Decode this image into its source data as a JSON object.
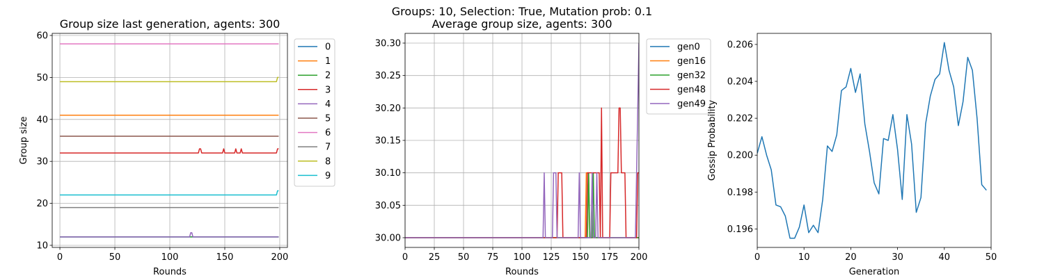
{
  "suptitle_line1": "Groups: 10, Selection: True, Mutation prob: 0.1",
  "chart_data": [
    {
      "type": "line",
      "title": "Group size last generation, agents: 300",
      "xlabel": "Rounds",
      "ylabel": "Group size",
      "xlim": [
        -7,
        207
      ],
      "ylim": [
        9.5,
        60.5
      ],
      "xticks": [
        0,
        50,
        100,
        150,
        200
      ],
      "yticks": [
        10,
        20,
        30,
        40,
        50,
        60
      ],
      "grid": true,
      "legend": "outside-right",
      "series": [
        {
          "name": "0",
          "color": "#1f77b4",
          "points": [
            [
              0,
              12
            ],
            [
              199,
              12
            ]
          ]
        },
        {
          "name": "1",
          "color": "#ff7f0e",
          "points": [
            [
              0,
              41
            ],
            [
              199,
              41
            ]
          ]
        },
        {
          "name": "2",
          "color": "#2ca02c",
          "points": [
            [
              0,
              12
            ],
            [
              199,
              12
            ]
          ]
        },
        {
          "name": "3",
          "color": "#d62728",
          "points": [
            [
              0,
              32
            ],
            [
              126,
              32
            ],
            [
              127,
              33
            ],
            [
              128,
              33
            ],
            [
              129,
              32
            ],
            [
              148,
              32
            ],
            [
              149,
              33
            ],
            [
              150,
              32
            ],
            [
              159,
              32
            ],
            [
              160,
              33
            ],
            [
              161,
              32
            ],
            [
              164,
              32
            ],
            [
              165,
              33
            ],
            [
              166,
              32
            ],
            [
              197,
              32
            ],
            [
              198,
              33
            ],
            [
              199,
              33
            ]
          ]
        },
        {
          "name": "4",
          "color": "#9467bd",
          "points": [
            [
              0,
              12
            ],
            [
              118,
              12
            ],
            [
              119,
              13
            ],
            [
              120,
              13
            ],
            [
              121,
              12
            ],
            [
              199,
              12
            ]
          ]
        },
        {
          "name": "5",
          "color": "#8c564b",
          "points": [
            [
              0,
              36
            ],
            [
              199,
              36
            ]
          ]
        },
        {
          "name": "6",
          "color": "#e377c2",
          "points": [
            [
              0,
              58
            ],
            [
              199,
              58
            ]
          ]
        },
        {
          "name": "7",
          "color": "#7f7f7f",
          "points": [
            [
              0,
              19
            ],
            [
              199,
              19
            ]
          ]
        },
        {
          "name": "8",
          "color": "#bcbd22",
          "points": [
            [
              0,
              49
            ],
            [
              197,
              49
            ],
            [
              198,
              50
            ],
            [
              199,
              50
            ]
          ]
        },
        {
          "name": "9",
          "color": "#17becf",
          "points": [
            [
              0,
              22
            ],
            [
              197,
              22
            ],
            [
              198,
              23
            ],
            [
              199,
              23
            ]
          ]
        }
      ]
    },
    {
      "type": "line",
      "title": "Average group size, agents: 300",
      "xlabel": "Rounds",
      "ylabel": "",
      "xlim": [
        0,
        200
      ],
      "ylim": [
        29.985,
        30.315
      ],
      "xticks": [
        0,
        25,
        50,
        75,
        100,
        125,
        150,
        175,
        200
      ],
      "yticks": [
        30.0,
        30.05,
        30.1,
        30.15,
        30.2,
        30.25,
        30.3
      ],
      "grid": true,
      "legend": "outside-right",
      "series": [
        {
          "name": "gen0",
          "color": "#1f77b4",
          "points": [
            [
              0,
              30.0
            ],
            [
              200,
              30.0
            ]
          ]
        },
        {
          "name": "gen16",
          "color": "#ff7f0e",
          "points": [
            [
              0,
              30.0
            ],
            [
              154,
              30.0
            ],
            [
              155,
              30.1
            ],
            [
              157,
              30.1
            ],
            [
              158,
              30.0
            ],
            [
              200,
              30.0
            ]
          ]
        },
        {
          "name": "gen32",
          "color": "#2ca02c",
          "points": [
            [
              0,
              30.0
            ],
            [
              156,
              30.0
            ],
            [
              157,
              30.1
            ],
            [
              158,
              30.0
            ],
            [
              160,
              30.0
            ],
            [
              161,
              30.1
            ],
            [
              162,
              30.0
            ],
            [
              200,
              30.0
            ]
          ]
        },
        {
          "name": "gen48",
          "color": "#d62728",
          "points": [
            [
              0,
              30.0
            ],
            [
              130,
              30.0
            ],
            [
              131,
              30.1
            ],
            [
              134,
              30.1
            ],
            [
              135,
              30.0
            ],
            [
              155,
              30.0
            ],
            [
              156,
              30.1
            ],
            [
              166,
              30.1
            ],
            [
              167,
              30.0
            ],
            [
              168,
              30.2
            ],
            [
              169,
              30.0
            ],
            [
              175,
              30.0
            ],
            [
              176,
              30.1
            ],
            [
              182,
              30.1
            ],
            [
              183,
              30.2
            ],
            [
              184,
              30.2
            ],
            [
              185,
              30.1
            ],
            [
              188,
              30.1
            ],
            [
              189,
              30.0
            ],
            [
              198,
              30.0
            ],
            [
              199,
              30.1
            ],
            [
              200,
              30.1
            ]
          ]
        },
        {
          "name": "gen49",
          "color": "#9467bd",
          "points": [
            [
              0,
              30.0
            ],
            [
              118,
              30.0
            ],
            [
              119,
              30.1
            ],
            [
              120,
              30.0
            ],
            [
              126,
              30.0
            ],
            [
              127,
              30.1
            ],
            [
              129,
              30.1
            ],
            [
              130,
              30.0
            ],
            [
              148,
              30.0
            ],
            [
              149,
              30.1
            ],
            [
              150,
              30.0
            ],
            [
              159,
              30.0
            ],
            [
              160,
              30.1
            ],
            [
              161,
              30.0
            ],
            [
              163,
              30.0
            ],
            [
              164,
              30.1
            ],
            [
              165,
              30.0
            ],
            [
              197,
              30.0
            ],
            [
              198,
              30.1
            ],
            [
              199,
              30.2
            ],
            [
              200,
              30.3
            ]
          ]
        }
      ]
    },
    {
      "type": "line",
      "title": "",
      "xlabel": "Generation",
      "ylabel": "Gossip Probability",
      "xlim": [
        0,
        50
      ],
      "ylim": [
        0.195,
        0.2066
      ],
      "xticks": [
        0,
        10,
        20,
        30,
        40,
        50
      ],
      "yticks": [
        0.196,
        0.198,
        0.2,
        0.202,
        0.204,
        0.206
      ],
      "grid": false,
      "legend": "none",
      "series": [
        {
          "color": "#1f77b4",
          "x": [
            0,
            1,
            2,
            3,
            4,
            5,
            6,
            7,
            8,
            9,
            10,
            11,
            12,
            13,
            14,
            15,
            16,
            17,
            18,
            19,
            20,
            21,
            22,
            23,
            24,
            25,
            26,
            27,
            28,
            29,
            30,
            31,
            32,
            33,
            34,
            35,
            36,
            37,
            38,
            39,
            40,
            41,
            42,
            43,
            44,
            45,
            46,
            47,
            48,
            49
          ],
          "y": [
            0.2001,
            0.201,
            0.2,
            0.1992,
            0.1973,
            0.1972,
            0.1967,
            0.1955,
            0.1955,
            0.1961,
            0.1973,
            0.1958,
            0.1962,
            0.1958,
            0.1976,
            0.2005,
            0.2002,
            0.2011,
            0.2035,
            0.2037,
            0.2047,
            0.2034,
            0.2044,
            0.2017,
            0.2002,
            0.1985,
            0.1979,
            0.2009,
            0.2008,
            0.2022,
            0.2003,
            0.1976,
            0.2022,
            0.2006,
            0.1969,
            0.1977,
            0.2017,
            0.2032,
            0.2041,
            0.2044,
            0.2061,
            0.2046,
            0.2037,
            0.2016,
            0.2029,
            0.2053,
            0.2046,
            0.202,
            0.1984,
            0.1981
          ]
        }
      ]
    }
  ]
}
